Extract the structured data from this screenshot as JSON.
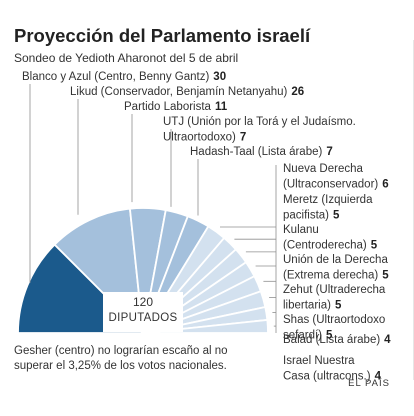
{
  "header": {
    "title": "Proyección del Parlamento israelí",
    "subtitle": "Sondeo de Yedioth Aharonot del 5 de abril"
  },
  "center": {
    "total": "120",
    "label": "DIPUTADOS"
  },
  "footnote": "Gesher (centro) no lograrían escaño al no superar el 3,25% de los votos nacionales.",
  "source": "EL PAÍS",
  "colors": {
    "dark": "#1b5a8c",
    "mid": "#a4c0dc",
    "light": "#d3e1ef",
    "leader": "#8f8f8f"
  },
  "chart_data": {
    "type": "pie",
    "shape": "semicircle",
    "total": 120,
    "title": "Proyección del Parlamento israelí",
    "series": [
      {
        "name": "Blanco y Azul (Centro, Benny Gantz)",
        "value": 30,
        "label_lines": [
          "Blanco y Azul (Centro, Benny Gantz)"
        ],
        "color": "dark"
      },
      {
        "name": "Likud (Conservador, Benjamín Netanyahu)",
        "value": 26,
        "label_lines": [
          "Likud (Conservador, Benjamín Netanyahu)"
        ],
        "color": "mid"
      },
      {
        "name": "Partido Laborista",
        "value": 11,
        "label_lines": [
          "Partido Laborista"
        ],
        "color": "mid"
      },
      {
        "name": "UTJ (Unión por la Torá y el Judaísmo. Ultraortodoxo)",
        "value": 7,
        "label_lines": [
          "UTJ (Unión por la Torá y el Judaísmo.",
          "Ultraortodoxo)"
        ],
        "color": "mid"
      },
      {
        "name": "Hadash-Taal (Lista árabe)",
        "value": 7,
        "label_lines": [
          "Hadash-Taal (Lista árabe)"
        ],
        "color": "mid"
      },
      {
        "name": "Nueva Derecha (Ultraconservador)",
        "value": 6,
        "label_lines": [
          "Nueva Derecha",
          "(Ultraconservador)"
        ],
        "color": "light"
      },
      {
        "name": "Meretz (Izquierda pacifista)",
        "value": 5,
        "label_lines": [
          "Meretz (Izquierda",
          "pacifista)"
        ],
        "color": "light"
      },
      {
        "name": "Kulanu (Centroderecha)",
        "value": 5,
        "label_lines": [
          "Kulanu",
          "(Centroderecha)"
        ],
        "color": "light"
      },
      {
        "name": "Unión de la Derecha (Extrema derecha)",
        "value": 5,
        "label_lines": [
          "Unión de la Derecha",
          "(Extrema derecha)"
        ],
        "color": "light"
      },
      {
        "name": "Zehut (Ultraderecha libertaria)",
        "value": 5,
        "label_lines": [
          "Zehut (Ultraderecha",
          "libertaria)"
        ],
        "color": "light"
      },
      {
        "name": "Shas (Ultraortodoxo sefardí)",
        "value": 5,
        "label_lines": [
          "Shas (Ultraortodoxo",
          "sefardí)"
        ],
        "color": "light"
      },
      {
        "name": "Balad (Lista árabe)",
        "value": 4,
        "label_lines": [
          "Balad (Lista árabe)"
        ],
        "color": "light"
      },
      {
        "name": "Israel Nuestra Casa (ultracons.)",
        "value": 4,
        "label_lines": [
          "Israel Nuestra",
          "Casa (ultracons.)"
        ],
        "color": "light"
      }
    ]
  }
}
